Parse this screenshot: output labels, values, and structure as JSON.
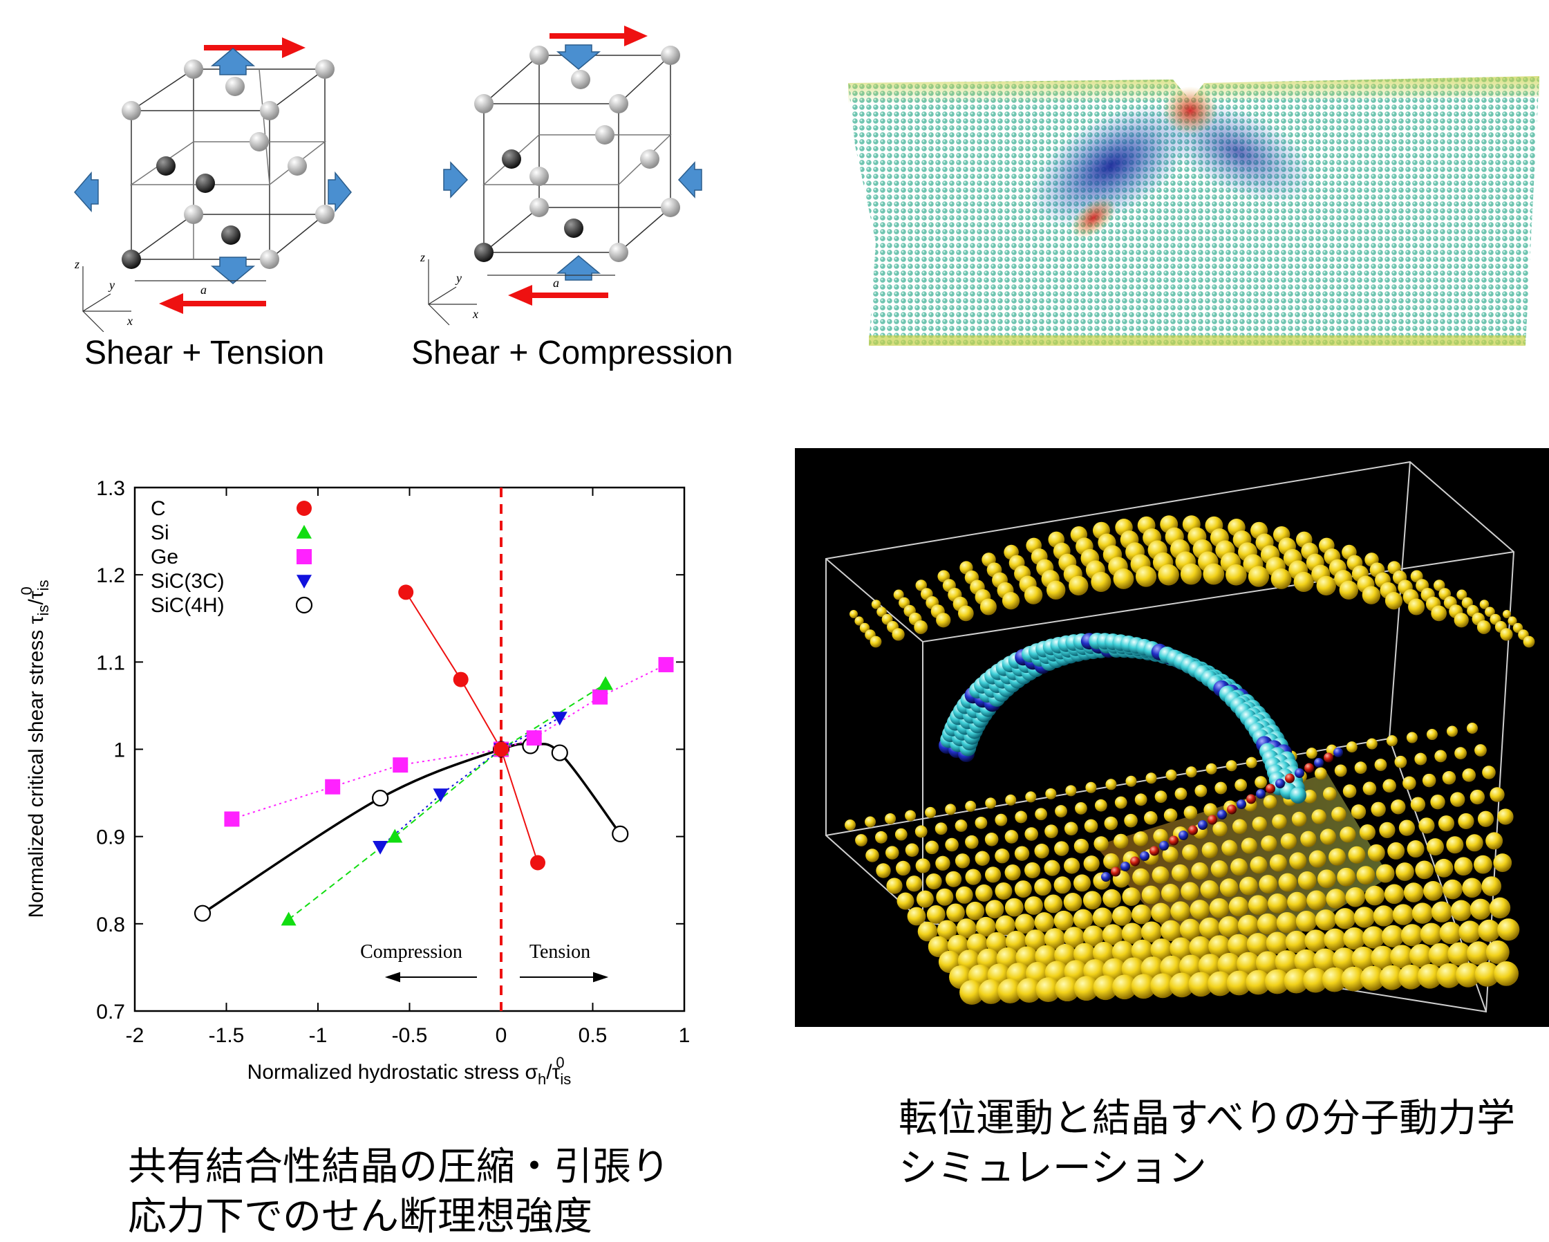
{
  "captions": {
    "cube_left": "Shear + Tension",
    "cube_right": "Shear + Compression",
    "chart_caption_line1": "共有結合性結晶の圧縮・引張り",
    "chart_caption_line2": "応力下でのせん断理想強度",
    "md_caption_line1": "転位運動と結晶すべりの分子動力学",
    "md_caption_line2": "シミュレーション"
  },
  "cube_labels": {
    "z": "z",
    "y": "y",
    "x": "x",
    "a": "a"
  },
  "colors": {
    "arrow_red": "#ee1111",
    "arrow_blue": "#4a8fd0",
    "C": "#ee1111",
    "Si": "#11dd11",
    "Ge": "#ff22ff",
    "SiC3C": "#1111dd",
    "SiC4H": "#000000"
  },
  "chart_data": {
    "type": "line",
    "xlabel": "Normalized hydrostatic stress σh/τis0",
    "ylabel": "Normalized critical shear stress τis/τis0",
    "xlim": [
      -2,
      1
    ],
    "ylim": [
      0.7,
      1.3
    ],
    "xticks": [
      "-2",
      "-1.5",
      "-1",
      "-0.5",
      "0",
      "0.5",
      "1"
    ],
    "yticks": [
      "0.7",
      "0.8",
      "0.9",
      "1",
      "1.1",
      "1.2",
      "1.3"
    ],
    "legend_position": "top-left",
    "annotations": {
      "left": "Compression",
      "right": "Tension"
    },
    "series": [
      {
        "name": "C",
        "marker": "circle",
        "line": "solid",
        "x": [
          -0.52,
          -0.22,
          0,
          0.2
        ],
        "y": [
          1.18,
          1.08,
          1.0,
          0.87
        ]
      },
      {
        "name": "Si",
        "marker": "triangle-up",
        "line": "dashed",
        "x": [
          -1.16,
          -0.58,
          0,
          0.57
        ],
        "y": [
          0.805,
          0.9,
          1.0,
          1.075
        ]
      },
      {
        "name": "Ge",
        "marker": "square",
        "line": "dotted",
        "x": [
          -1.47,
          -0.92,
          -0.55,
          0,
          0.18,
          0.54,
          0.9
        ],
        "y": [
          0.92,
          0.957,
          0.982,
          1.0,
          1.013,
          1.06,
          1.097
        ]
      },
      {
        "name": "SiC(3C)",
        "marker": "triangle-down",
        "line": "dotted",
        "x": [
          -0.66,
          -0.33,
          0,
          0.32
        ],
        "y": [
          0.888,
          0.948,
          1.0,
          1.036
        ]
      },
      {
        "name": "SiC(4H)",
        "marker": "open-circle",
        "line": "smooth",
        "x": [
          -1.63,
          -0.66,
          0,
          0.16,
          0.32,
          0.65
        ],
        "y": [
          0.812,
          0.944,
          1.0,
          1.004,
          0.996,
          0.903
        ]
      }
    ]
  }
}
